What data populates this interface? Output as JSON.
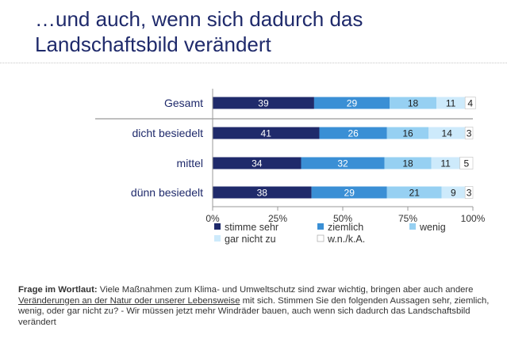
{
  "title": "…und auch, wenn sich dadurch das Landschaftsbild verändert",
  "colors": {
    "title": "#1f2a6b",
    "stimme_sehr": "#1f2a6b",
    "ziemlich": "#3a8fd5",
    "wenig": "#96d0f2",
    "gar_nicht_zu": "#cdeafb",
    "wnka": "#ffffff"
  },
  "chart_data": {
    "type": "bar",
    "orientation": "horizontal",
    "stacked": true,
    "categories": [
      "Gesamt",
      "dicht besiedelt",
      "mittel",
      "dünn besiedelt"
    ],
    "series": [
      {
        "name": "stimme sehr",
        "values": [
          39,
          41,
          34,
          38
        ]
      },
      {
        "name": "ziemlich",
        "values": [
          29,
          26,
          32,
          29
        ]
      },
      {
        "name": "wenig",
        "values": [
          18,
          16,
          18,
          21
        ]
      },
      {
        "name": "gar nicht zu",
        "values": [
          11,
          14,
          11,
          9
        ]
      },
      {
        "name": "w.n./k.A.",
        "values": [
          4,
          3,
          5,
          3
        ]
      }
    ],
    "xlim": [
      0,
      100
    ],
    "xticks": [
      "0%",
      "25%",
      "50%",
      "75%",
      "100%"
    ],
    "legend_position": "bottom",
    "grid": false
  },
  "footnote": {
    "label": "Frage im Wortlaut:",
    "part1": " Viele Maßnahmen zum Klima- und Umweltschutz sind zwar wichtig, bringen aber auch andere ",
    "underlined": "Veränderungen an der Natur oder unserer Lebensweise",
    "part2": " mit sich. Stimmen Sie den folgenden Aussagen sehr, ziemlich, wenig, oder gar nicht zu? - Wir müssen jetzt mehr Windräder bauen, auch wenn sich dadurch das Landschaftsbild verändert"
  }
}
